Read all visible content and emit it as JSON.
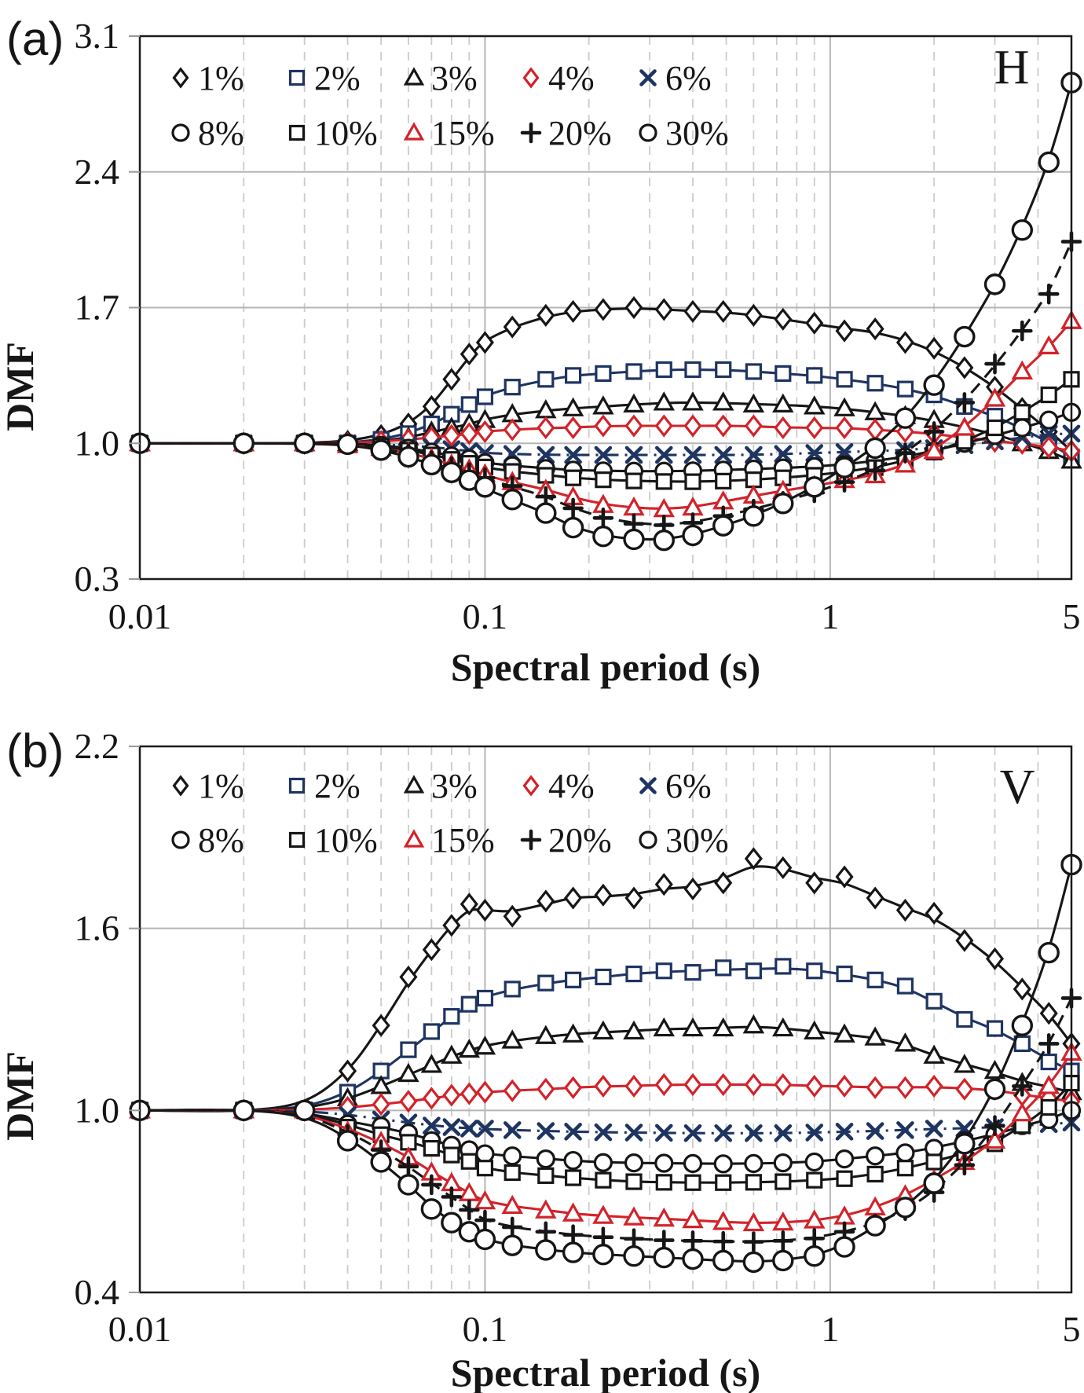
{
  "figure": {
    "panel_a_letter": "(a)",
    "panel_b_letter": "(b)",
    "xlabel": "Spectral period (s)",
    "ylabel": "DMF"
  },
  "chart_data": [
    {
      "type": "line",
      "panel": "(a)",
      "corner_label": "H",
      "xlabel": "Spectral period (s)",
      "ylabel": "DMF",
      "xscale": "log",
      "xlim": [
        0.01,
        5
      ],
      "ylim": [
        0.3,
        3.1
      ],
      "xticks": [
        0.01,
        0.1,
        1,
        5
      ],
      "xtick_labels": [
        "0.01",
        "0.1",
        "1",
        "5"
      ],
      "yticks": [
        0.3,
        1.0,
        1.7,
        2.4,
        3.1
      ],
      "ytick_labels": [
        "0.3",
        "1.0",
        "1.7",
        "2.4",
        "3.1"
      ],
      "grid": true,
      "legend_position": "top-inside",
      "x": [
        0.01,
        0.02,
        0.03,
        0.04,
        0.05,
        0.06,
        0.07,
        0.08,
        0.09,
        0.1,
        0.12,
        0.15,
        0.18,
        0.22,
        0.27,
        0.33,
        0.4,
        0.49,
        0.6,
        0.73,
        0.9,
        1.1,
        1.35,
        1.65,
        2.0,
        2.45,
        3.0,
        3.6,
        4.3,
        5.0
      ],
      "series": [
        {
          "name": "1%",
          "marker": "diamond",
          "color": "#161616",
          "line": "solid",
          "values": [
            1.0,
            1.0,
            1.0,
            1.01,
            1.04,
            1.1,
            1.19,
            1.33,
            1.46,
            1.52,
            1.6,
            1.66,
            1.68,
            1.69,
            1.7,
            1.69,
            1.68,
            1.68,
            1.66,
            1.64,
            1.62,
            1.58,
            1.59,
            1.52,
            1.49,
            1.39,
            1.29,
            1.18,
            1.06,
            0.96
          ]
        },
        {
          "name": "2%",
          "marker": "square",
          "color": "#1e3461",
          "line": "solid",
          "values": [
            1.0,
            1.0,
            1.0,
            1.0,
            1.02,
            1.05,
            1.1,
            1.15,
            1.2,
            1.24,
            1.29,
            1.33,
            1.35,
            1.36,
            1.37,
            1.38,
            1.38,
            1.38,
            1.37,
            1.36,
            1.35,
            1.33,
            1.31,
            1.28,
            1.25,
            1.19,
            1.14,
            1.08,
            1.0,
            0.93
          ]
        },
        {
          "name": "3%",
          "marker": "triangle",
          "color": "#161616",
          "line": "solid",
          "values": [
            1.0,
            1.0,
            1.0,
            1.0,
            1.01,
            1.03,
            1.06,
            1.08,
            1.1,
            1.12,
            1.15,
            1.17,
            1.18,
            1.19,
            1.2,
            1.21,
            1.21,
            1.21,
            1.2,
            1.2,
            1.19,
            1.18,
            1.16,
            1.14,
            1.12,
            1.08,
            1.05,
            1.0,
            0.96,
            0.91
          ]
        },
        {
          "name": "4%",
          "marker": "diamond",
          "color": "#d2232a",
          "line": "solid",
          "values": [
            1.0,
            1.0,
            1.0,
            1.0,
            1.01,
            1.02,
            1.03,
            1.04,
            1.05,
            1.06,
            1.07,
            1.08,
            1.08,
            1.09,
            1.09,
            1.09,
            1.09,
            1.09,
            1.09,
            1.08,
            1.08,
            1.08,
            1.07,
            1.06,
            1.05,
            1.03,
            1.01,
            1.0,
            0.98,
            0.96
          ]
        },
        {
          "name": "6%",
          "marker": "x",
          "color": "#1e3461",
          "line": "dashdot",
          "values": [
            1.0,
            1.0,
            1.0,
            1.0,
            0.99,
            0.99,
            0.98,
            0.97,
            0.96,
            0.95,
            0.945,
            0.94,
            0.94,
            0.94,
            0.94,
            0.94,
            0.94,
            0.94,
            0.94,
            0.945,
            0.95,
            0.955,
            0.96,
            0.965,
            0.975,
            0.99,
            1.01,
            1.03,
            1.05,
            1.05
          ]
        },
        {
          "name": "8%",
          "marker": "circle",
          "color": "#161616",
          "line": "solid",
          "values": [
            1.0,
            1.0,
            1.0,
            1.0,
            0.99,
            0.975,
            0.955,
            0.935,
            0.92,
            0.9,
            0.885,
            0.87,
            0.862,
            0.858,
            0.856,
            0.856,
            0.858,
            0.862,
            0.867,
            0.873,
            0.88,
            0.89,
            0.91,
            0.93,
            0.96,
            1.0,
            1.04,
            1.08,
            1.12,
            1.16
          ]
        },
        {
          "name": "10%",
          "marker": "square",
          "color": "#161616",
          "line": "solid",
          "values": [
            1.0,
            1.0,
            1.0,
            0.995,
            0.985,
            0.965,
            0.94,
            0.917,
            0.897,
            0.878,
            0.855,
            0.835,
            0.822,
            0.812,
            0.806,
            0.803,
            0.802,
            0.805,
            0.812,
            0.822,
            0.835,
            0.852,
            0.875,
            0.91,
            0.955,
            1.01,
            1.08,
            1.16,
            1.25,
            1.33
          ]
        },
        {
          "name": "15%",
          "marker": "triangle",
          "color": "#d2232a",
          "line": "solid",
          "values": [
            1.0,
            1.0,
            1.0,
            0.99,
            0.975,
            0.95,
            0.92,
            0.89,
            0.865,
            0.84,
            0.8,
            0.76,
            0.722,
            0.682,
            0.668,
            0.66,
            0.668,
            0.7,
            0.73,
            0.755,
            0.78,
            0.81,
            0.835,
            0.89,
            0.96,
            1.08,
            1.23,
            1.37,
            1.5,
            1.63
          ]
        },
        {
          "name": "20%",
          "marker": "plus",
          "color": "#161616",
          "line": "dashed",
          "values": [
            1.0,
            1.0,
            1.0,
            0.995,
            0.975,
            0.945,
            0.91,
            0.878,
            0.848,
            0.822,
            0.78,
            0.725,
            0.665,
            0.615,
            0.585,
            0.578,
            0.59,
            0.625,
            0.66,
            0.7,
            0.745,
            0.8,
            0.86,
            0.95,
            1.06,
            1.21,
            1.41,
            1.58,
            1.77,
            2.04
          ]
        },
        {
          "name": "30%",
          "marker": "circle-lg",
          "color": "#161616",
          "line": "solid",
          "values": [
            1.0,
            1.0,
            1.0,
            0.995,
            0.965,
            0.93,
            0.89,
            0.85,
            0.81,
            0.775,
            0.71,
            0.64,
            0.565,
            0.52,
            0.505,
            0.5,
            0.525,
            0.575,
            0.625,
            0.69,
            0.775,
            0.875,
            0.975,
            1.13,
            1.3,
            1.55,
            1.82,
            2.1,
            2.45,
            2.86
          ]
        }
      ]
    },
    {
      "type": "line",
      "panel": "(b)",
      "corner_label": "V",
      "xlabel": "Spectral period (s)",
      "ylabel": "DMF",
      "xscale": "log",
      "xlim": [
        0.01,
        5
      ],
      "ylim": [
        0.4,
        2.2
      ],
      "xticks": [
        0.01,
        0.1,
        1,
        5
      ],
      "xtick_labels": [
        "0.01",
        "0.1",
        "1",
        "5"
      ],
      "yticks": [
        0.4,
        1.0,
        1.6,
        2.2
      ],
      "ytick_labels": [
        "0.4",
        "1.0",
        "1.6",
        "2.2"
      ],
      "grid": true,
      "legend_position": "top-inside",
      "x": [
        0.01,
        0.02,
        0.03,
        0.04,
        0.05,
        0.06,
        0.07,
        0.08,
        0.09,
        0.1,
        0.12,
        0.15,
        0.18,
        0.22,
        0.27,
        0.33,
        0.4,
        0.49,
        0.6,
        0.73,
        0.9,
        1.1,
        1.35,
        1.65,
        2.0,
        2.45,
        3.0,
        3.6,
        4.3,
        5.0
      ],
      "series": [
        {
          "name": "1%",
          "marker": "diamond",
          "color": "#161616",
          "line": "solid",
          "values": [
            1.0,
            1.0,
            1.0,
            1.13,
            1.28,
            1.44,
            1.53,
            1.61,
            1.68,
            1.66,
            1.64,
            1.69,
            1.7,
            1.71,
            1.7,
            1.745,
            1.73,
            1.75,
            1.83,
            1.8,
            1.75,
            1.77,
            1.7,
            1.66,
            1.65,
            1.56,
            1.5,
            1.4,
            1.32,
            1.22
          ]
        },
        {
          "name": "2%",
          "marker": "square",
          "color": "#1e3461",
          "line": "solid",
          "values": [
            1.0,
            1.0,
            1.0,
            1.06,
            1.13,
            1.2,
            1.26,
            1.31,
            1.35,
            1.37,
            1.4,
            1.42,
            1.43,
            1.44,
            1.45,
            1.46,
            1.455,
            1.47,
            1.46,
            1.475,
            1.46,
            1.45,
            1.43,
            1.41,
            1.36,
            1.3,
            1.27,
            1.22,
            1.16,
            1.13
          ]
        },
        {
          "name": "3%",
          "marker": "triangle",
          "color": "#161616",
          "line": "solid",
          "values": [
            1.0,
            1.0,
            1.0,
            1.04,
            1.08,
            1.12,
            1.15,
            1.18,
            1.2,
            1.21,
            1.23,
            1.245,
            1.25,
            1.26,
            1.26,
            1.27,
            1.27,
            1.27,
            1.28,
            1.27,
            1.26,
            1.25,
            1.24,
            1.22,
            1.18,
            1.15,
            1.13,
            1.09,
            1.08,
            1.06
          ]
        },
        {
          "name": "4%",
          "marker": "diamond",
          "color": "#d2232a",
          "line": "solid",
          "values": [
            1.0,
            1.0,
            1.0,
            1.01,
            1.02,
            1.03,
            1.04,
            1.05,
            1.055,
            1.06,
            1.065,
            1.07,
            1.075,
            1.08,
            1.08,
            1.085,
            1.085,
            1.085,
            1.085,
            1.085,
            1.08,
            1.08,
            1.075,
            1.075,
            1.08,
            1.07,
            1.07,
            1.05,
            1.04,
            1.03
          ]
        },
        {
          "name": "6%",
          "marker": "x",
          "color": "#1e3461",
          "line": "dashdot",
          "values": [
            1.0,
            1.0,
            1.0,
            0.985,
            0.97,
            0.96,
            0.95,
            0.945,
            0.94,
            0.94,
            0.935,
            0.932,
            0.93,
            0.928,
            0.927,
            0.926,
            0.925,
            0.925,
            0.925,
            0.925,
            0.927,
            0.93,
            0.932,
            0.935,
            0.94,
            0.94,
            0.945,
            0.95,
            0.955,
            0.96
          ]
        },
        {
          "name": "8%",
          "marker": "circle",
          "color": "#161616",
          "line": "solid",
          "values": [
            1.0,
            1.0,
            1.0,
            0.955,
            0.948,
            0.925,
            0.9,
            0.885,
            0.87,
            0.857,
            0.85,
            0.84,
            0.835,
            0.828,
            0.827,
            0.826,
            0.825,
            0.824,
            0.825,
            0.827,
            0.83,
            0.84,
            0.85,
            0.86,
            0.875,
            0.9,
            0.92,
            0.95,
            0.97,
            1.0
          ]
        },
        {
          "name": "10%",
          "marker": "square",
          "color": "#161616",
          "line": "solid",
          "values": [
            1.0,
            1.0,
            1.0,
            0.945,
            0.92,
            0.895,
            0.875,
            0.853,
            0.832,
            0.81,
            0.795,
            0.785,
            0.778,
            0.77,
            0.765,
            0.763,
            0.762,
            0.762,
            0.763,
            0.765,
            0.77,
            0.775,
            0.79,
            0.81,
            0.83,
            0.86,
            0.89,
            0.95,
            1.01,
            1.09
          ]
        },
        {
          "name": "15%",
          "marker": "triangle",
          "color": "#d2232a",
          "line": "solid",
          "values": [
            1.0,
            1.0,
            1.0,
            0.93,
            0.896,
            0.845,
            0.795,
            0.76,
            0.727,
            0.7,
            0.685,
            0.67,
            0.66,
            0.652,
            0.647,
            0.643,
            0.638,
            0.632,
            0.628,
            0.63,
            0.637,
            0.65,
            0.68,
            0.72,
            0.77,
            0.83,
            0.9,
            0.99,
            1.08,
            1.19
          ]
        },
        {
          "name": "20%",
          "marker": "plus",
          "color": "#161616",
          "line": "dashed",
          "values": [
            1.0,
            1.0,
            1.0,
            0.92,
            0.87,
            0.815,
            0.755,
            0.715,
            0.672,
            0.638,
            0.615,
            0.6,
            0.59,
            0.582,
            0.577,
            0.572,
            0.57,
            0.568,
            0.567,
            0.57,
            0.578,
            0.6,
            0.625,
            0.67,
            0.73,
            0.82,
            0.95,
            1.08,
            1.22,
            1.37
          ]
        },
        {
          "name": "30%",
          "marker": "circle-lg",
          "color": "#161616",
          "line": "solid",
          "values": [
            1.0,
            1.0,
            1.0,
            0.9,
            0.83,
            0.755,
            0.675,
            0.63,
            0.6,
            0.575,
            0.555,
            0.54,
            0.532,
            0.525,
            0.52,
            0.515,
            0.51,
            0.505,
            0.5,
            0.505,
            0.52,
            0.55,
            0.62,
            0.68,
            0.76,
            0.89,
            1.07,
            1.28,
            1.52,
            1.81
          ]
        }
      ]
    }
  ]
}
